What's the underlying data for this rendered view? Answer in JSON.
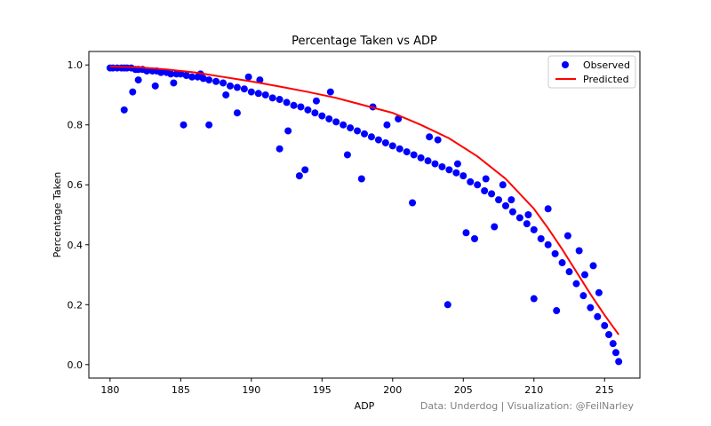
{
  "chart_data": {
    "type": "scatter",
    "title": "Percentage Taken vs ADP",
    "xlabel": "ADP",
    "ylabel": "Percentage Taken",
    "xlim": [
      178.5,
      217.5
    ],
    "ylim": [
      -0.045,
      1.045
    ],
    "xticks": [
      180,
      185,
      190,
      195,
      200,
      205,
      210,
      215
    ],
    "yticks": [
      0.0,
      0.2,
      0.4,
      0.6,
      0.8,
      1.0
    ],
    "ytick_labels": [
      "0.0",
      "0.2",
      "0.4",
      "0.6",
      "0.8",
      "1.0"
    ],
    "grid": false,
    "legend_position": "top-right",
    "credit": "Data: Underdog | Visualization: @FeilNarley",
    "series": [
      {
        "name": "Observed",
        "kind": "scatter",
        "color": "#0000ff",
        "x": [
          180.0,
          180.2,
          180.5,
          180.8,
          181.0,
          181.2,
          181.5,
          181.8,
          182.0,
          182.3,
          182.6,
          183.0,
          183.3,
          183.6,
          184.0,
          184.3,
          184.7,
          185.0,
          185.4,
          185.8,
          186.2,
          186.6,
          187.0,
          187.5,
          188.0,
          188.5,
          189.0,
          189.5,
          190.0,
          190.5,
          191.0,
          191.5,
          192.0,
          192.5,
          193.0,
          193.5,
          194.0,
          194.5,
          195.0,
          195.5,
          196.0,
          196.5,
          197.0,
          197.5,
          198.0,
          198.5,
          199.0,
          199.5,
          200.0,
          200.5,
          201.0,
          201.5,
          202.0,
          202.5,
          203.0,
          203.5,
          204.0,
          204.5,
          205.0,
          205.5,
          206.0,
          206.5,
          207.0,
          207.5,
          208.0,
          208.5,
          209.0,
          209.5,
          210.0,
          210.5,
          211.0,
          211.5,
          212.0,
          212.5,
          213.0,
          213.5,
          214.0,
          214.5,
          215.0,
          215.3,
          215.6,
          215.8,
          216.0,
          181.0,
          181.6,
          185.2,
          187.0,
          189.0,
          192.0,
          192.6,
          193.4,
          193.8,
          196.8,
          197.8,
          201.4,
          203.9,
          205.2,
          205.8,
          207.2,
          210.0,
          211.6,
          182.0,
          183.2,
          186.4,
          188.2,
          190.6,
          194.6,
          198.6,
          200.4,
          202.6,
          204.6,
          206.6,
          208.4,
          209.6,
          212.4,
          213.6,
          214.6,
          184.5,
          189.8,
          195.6,
          199.6,
          203.2,
          207.8,
          211.0,
          213.2,
          214.2
        ],
        "y": [
          0.99,
          0.99,
          0.99,
          0.99,
          0.99,
          0.99,
          0.99,
          0.985,
          0.985,
          0.985,
          0.98,
          0.98,
          0.98,
          0.975,
          0.975,
          0.97,
          0.97,
          0.97,
          0.965,
          0.96,
          0.96,
          0.955,
          0.95,
          0.945,
          0.94,
          0.93,
          0.925,
          0.92,
          0.91,
          0.905,
          0.9,
          0.89,
          0.885,
          0.875,
          0.865,
          0.86,
          0.85,
          0.84,
          0.83,
          0.82,
          0.81,
          0.8,
          0.79,
          0.78,
          0.77,
          0.76,
          0.75,
          0.74,
          0.73,
          0.72,
          0.71,
          0.7,
          0.69,
          0.68,
          0.67,
          0.66,
          0.65,
          0.64,
          0.63,
          0.61,
          0.6,
          0.58,
          0.57,
          0.55,
          0.53,
          0.51,
          0.49,
          0.47,
          0.45,
          0.42,
          0.4,
          0.37,
          0.34,
          0.31,
          0.27,
          0.23,
          0.19,
          0.16,
          0.13,
          0.1,
          0.07,
          0.04,
          0.01,
          0.85,
          0.91,
          0.8,
          0.8,
          0.84,
          0.72,
          0.78,
          0.63,
          0.65,
          0.7,
          0.62,
          0.54,
          0.2,
          0.44,
          0.42,
          0.46,
          0.22,
          0.18,
          0.95,
          0.93,
          0.97,
          0.9,
          0.95,
          0.88,
          0.86,
          0.82,
          0.76,
          0.67,
          0.62,
          0.55,
          0.5,
          0.43,
          0.3,
          0.24,
          0.94,
          0.96,
          0.91,
          0.8,
          0.75,
          0.6,
          0.52,
          0.38,
          0.33
        ]
      },
      {
        "name": "Predicted",
        "kind": "line",
        "color": "#ff0000",
        "x": [
          180,
          182,
          184,
          186,
          188,
          190,
          192,
          194,
          196,
          198,
          200,
          202,
          204,
          206,
          208,
          210,
          211,
          212,
          213,
          214,
          215,
          216
        ],
        "y": [
          0.995,
          0.992,
          0.985,
          0.975,
          0.96,
          0.945,
          0.928,
          0.91,
          0.89,
          0.865,
          0.84,
          0.8,
          0.755,
          0.695,
          0.62,
          0.52,
          0.455,
          0.385,
          0.31,
          0.235,
          0.165,
          0.1
        ]
      }
    ]
  }
}
